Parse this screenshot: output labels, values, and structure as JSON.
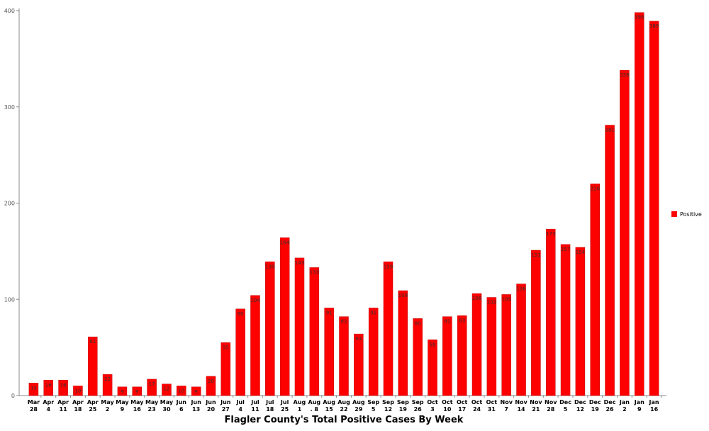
{
  "chart_data": {
    "type": "bar",
    "title": "Flagler County's Total Positive Cases By Week",
    "categories": [
      "Mar\n28",
      "Apr\n4",
      "Apr\n11",
      "Apr\n18",
      "Apr\n25",
      "May\n2",
      "May\n9",
      "May\n16",
      "May\n23",
      "May\n30",
      "Jun\n6",
      "Jun\n13",
      "Jun\n20",
      "Jun\n27",
      "Jul\n4",
      "Jul\n11",
      "Jul\n18",
      "Jul\n25",
      "Aug\n1",
      "Aug\n. 8",
      "Aug\n15",
      "Aug\n22",
      "Aug\n29",
      "Sep\n5",
      "Sep\n12",
      "Sep\n19",
      "Sep\n26",
      "Oct\n3",
      "Oct\n10",
      "Oct\n17",
      "Oct\n24",
      "Oct\n31",
      "Nov\n7",
      "Nov\n14",
      "Nov\n21",
      "Nov\n28",
      "Dec\n5",
      "Dec\n12",
      "Dec\n19",
      "Dec\n26",
      "Jan\n2",
      "Jan\n9",
      "Jan\n16"
    ],
    "series": [
      {
        "name": "Positive",
        "color": "#ff0000",
        "values": [
          13,
          16,
          16,
          10,
          61,
          22,
          9,
          9,
          17,
          12,
          10,
          9,
          20,
          55,
          90,
          104,
          139,
          164,
          143,
          133,
          91,
          82,
          64,
          91,
          139,
          109,
          80,
          58,
          82,
          83,
          106,
          102,
          105,
          116,
          151,
          173,
          157,
          154,
          220,
          281,
          338,
          398,
          389
        ]
      }
    ],
    "ylim": [
      0,
      400
    ],
    "yticks": [
      0,
      100,
      200,
      300,
      400
    ],
    "grid": false,
    "legend": "right"
  }
}
